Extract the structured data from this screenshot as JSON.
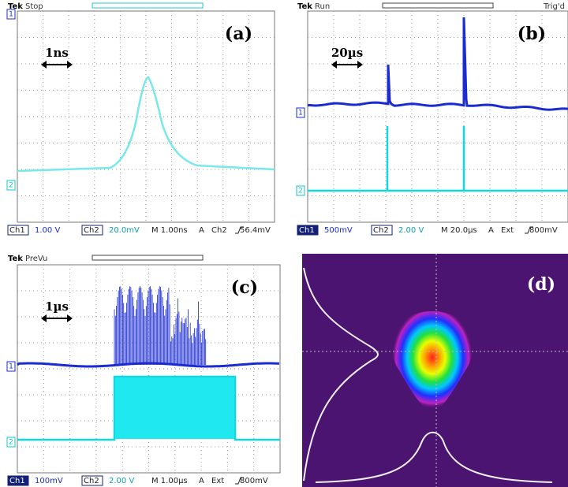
{
  "panels": [
    {
      "label": "(a)",
      "brand": "Tek",
      "state": "Stop",
      "scale": "1ns",
      "markers": [
        "1",
        "2"
      ],
      "status": [
        "Ch1",
        "1.00 V",
        "Ch2",
        "20.0mV",
        "M 1.00ns",
        "A",
        "Ch2",
        "56.4mV"
      ]
    },
    {
      "label": "(b)",
      "brand": "Tek",
      "state": "Run",
      "trigger": "Trig'd",
      "scale": "20µs",
      "markers": [
        "1",
        "2"
      ],
      "status": [
        "Ch1",
        "500mV",
        "Ch2",
        "2.00 V",
        "M 20.0µs",
        "A",
        "Ext",
        "800mV"
      ]
    },
    {
      "label": "(c)",
      "brand": "Tek",
      "state": "PreVu",
      "scale": "1µs",
      "markers": [
        "1",
        "2"
      ],
      "status": [
        "Ch1",
        "100mV",
        "Ch2",
        "2.00 V",
        "M 1.00µs",
        "A",
        "Ext",
        "800mV"
      ]
    },
    {
      "label": "(d)"
    }
  ]
}
